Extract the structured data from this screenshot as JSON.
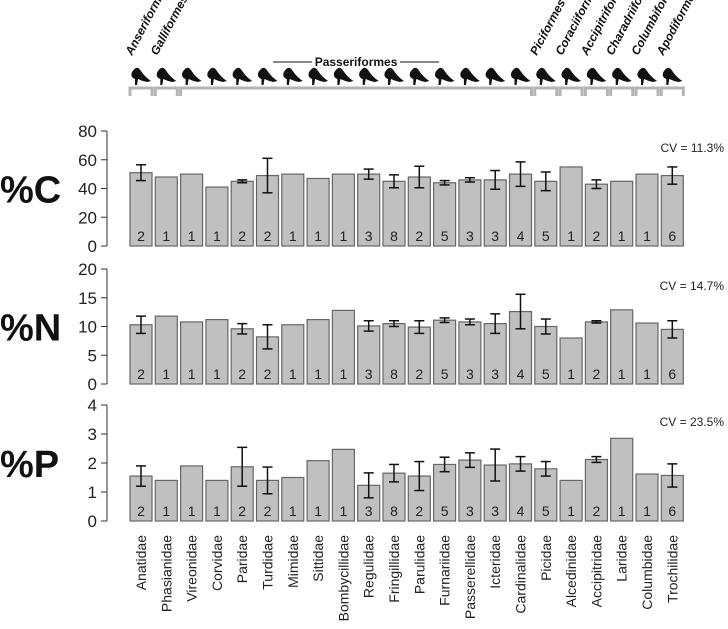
{
  "chart_data": [
    {
      "type": "bar",
      "title": "%C",
      "annotation": "CV = 11.3%",
      "ylim": [
        0,
        80
      ],
      "yticks": [
        "0",
        "20",
        "40",
        "60",
        "80"
      ],
      "categories": [
        "Anatidae",
        "Phasianidae",
        "Vireonidae",
        "Corvidae",
        "Paridae",
        "Turdidae",
        "Mimidae",
        "Sittidae",
        "Bombycillidae",
        "Regulidae",
        "Fringillidae",
        "Parulidae",
        "Furnariidae",
        "Passerellidae",
        "Icteridae",
        "Cardinalidae",
        "Picidae",
        "Alcedinidae",
        "Accipitridae",
        "Laridae",
        "Columbidae",
        "Trochilidae"
      ],
      "values": [
        51,
        48,
        50,
        41,
        45,
        49,
        50,
        47,
        50,
        50,
        45,
        48,
        44,
        46,
        46,
        50,
        45,
        55,
        43,
        45,
        50,
        49
      ],
      "errors": [
        5.5,
        null,
        null,
        null,
        1,
        12,
        null,
        null,
        null,
        3.5,
        4.5,
        7.5,
        1.5,
        1.5,
        6.5,
        8.5,
        6.5,
        null,
        3,
        null,
        null,
        6
      ],
      "n": [
        "2",
        "1",
        "1",
        "1",
        "2",
        "2",
        "1",
        "1",
        "1",
        "3",
        "8",
        "2",
        "5",
        "3",
        "3",
        "4",
        "5",
        "1",
        "2",
        "1",
        "1",
        "6"
      ]
    },
    {
      "type": "bar",
      "title": "%N",
      "annotation": "CV = 14.7%",
      "ylim": [
        0,
        20
      ],
      "yticks": [
        "0",
        "5",
        "10",
        "15",
        "20"
      ],
      "values": [
        10.3,
        11.8,
        10.8,
        11.2,
        9.6,
        8.2,
        10.3,
        11.2,
        12.8,
        10.1,
        10.5,
        9.9,
        11.1,
        10.8,
        10.5,
        12.6,
        10.0,
        8.0,
        10.8,
        12.9,
        10.6,
        9.5
      ],
      "errors": [
        1.5,
        null,
        null,
        null,
        0.9,
        2.1,
        null,
        null,
        null,
        0.9,
        0.5,
        1.1,
        0.4,
        0.5,
        1.7,
        3,
        1.3,
        null,
        0.2,
        null,
        null,
        1.5
      ],
      "n": [
        "2",
        "1",
        "1",
        "1",
        "2",
        "2",
        "1",
        "1",
        "1",
        "3",
        "8",
        "2",
        "5",
        "3",
        "3",
        "4",
        "5",
        "1",
        "2",
        "1",
        "1",
        "6"
      ]
    },
    {
      "type": "bar",
      "title": "%P",
      "annotation": "CV = 23.5%",
      "ylim": [
        0,
        4
      ],
      "yticks": [
        "0",
        "1",
        "2",
        "3",
        "4"
      ],
      "values": [
        1.55,
        1.4,
        1.9,
        1.4,
        1.87,
        1.4,
        1.5,
        2.08,
        2.47,
        1.23,
        1.65,
        1.55,
        1.95,
        2.1,
        1.93,
        1.97,
        1.8,
        1.4,
        2.12,
        2.85,
        1.62,
        1.57
      ],
      "errors": [
        0.35,
        null,
        null,
        null,
        0.67,
        0.46,
        null,
        null,
        null,
        0.43,
        0.3,
        0.5,
        0.25,
        0.25,
        0.55,
        0.25,
        0.25,
        null,
        0.1,
        null,
        null,
        0.4
      ],
      "n": [
        "2",
        "1",
        "1",
        "1",
        "2",
        "2",
        "1",
        "1",
        "1",
        "3",
        "8",
        "2",
        "5",
        "3",
        "3",
        "4",
        "5",
        "1",
        "2",
        "1",
        "1",
        "6"
      ]
    }
  ],
  "orders": [
    {
      "label": "Anseriformes",
      "from": 0,
      "to": 0
    },
    {
      "label": "Galliformes",
      "from": 1,
      "to": 1
    },
    {
      "label": "Passeriformes",
      "from": 2,
      "to": 15
    },
    {
      "label": "Piciformes",
      "from": 16,
      "to": 16
    },
    {
      "label": "Coraciiformes",
      "from": 17,
      "to": 17
    },
    {
      "label": "Accipitriformes",
      "from": 18,
      "to": 18
    },
    {
      "label": "Charadriiformes",
      "from": 19,
      "to": 19
    },
    {
      "label": "Columbiformes",
      "from": 20,
      "to": 20
    },
    {
      "label": "Apodiformes",
      "from": 21,
      "to": 21
    }
  ],
  "colors": {
    "bar": "#c0c0c0",
    "bar_stroke": "#666666",
    "bracket": "#b4b4b4",
    "text": "#222222"
  }
}
